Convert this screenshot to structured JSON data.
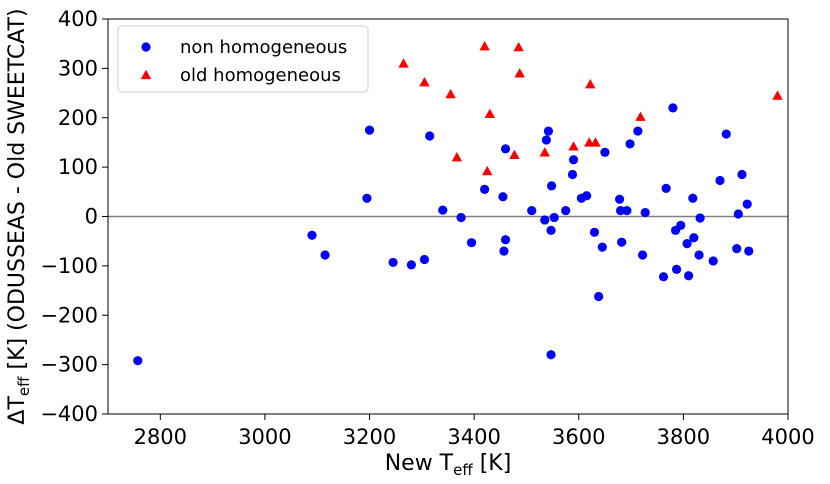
{
  "chart_data": {
    "type": "scatter",
    "xlabel": {
      "main": "New T",
      "sub": "eff",
      "tail": " [K]"
    },
    "ylabel": {
      "main": "ΔT",
      "sub": "eff",
      "tail": " [K] (ODUSSEAS - Old SWEETCAT)"
    },
    "xlim": [
      2700,
      4000
    ],
    "ylim": [
      -400,
      400
    ],
    "xticks": [
      2800,
      3000,
      3200,
      3400,
      3600,
      3800,
      4000
    ],
    "yticks": [
      -400,
      -300,
      -200,
      -100,
      0,
      100,
      200,
      300,
      400
    ],
    "hline": 0,
    "grid": false,
    "legend_position": "top-left",
    "series": [
      {
        "name": "non homogeneous",
        "marker": "circle",
        "color": "#0000ff",
        "points": [
          [
            2757,
            -292
          ],
          [
            3090,
            -38
          ],
          [
            3115,
            -78
          ],
          [
            3195,
            37
          ],
          [
            3200,
            175
          ],
          [
            3245,
            -93
          ],
          [
            3280,
            -98
          ],
          [
            3305,
            -87
          ],
          [
            3315,
            163
          ],
          [
            3340,
            13
          ],
          [
            3375,
            -2
          ],
          [
            3395,
            -53
          ],
          [
            3420,
            55
          ],
          [
            3455,
            40
          ],
          [
            3457,
            -70
          ],
          [
            3460,
            -47
          ],
          [
            3460,
            137
          ],
          [
            3510,
            12
          ],
          [
            3535,
            -7
          ],
          [
            3538,
            155
          ],
          [
            3542,
            173
          ],
          [
            3548,
            62
          ],
          [
            3547,
            -28
          ],
          [
            3547,
            -280
          ],
          [
            3553,
            -2
          ],
          [
            3575,
            12
          ],
          [
            3588,
            85
          ],
          [
            3590,
            115
          ],
          [
            3605,
            37
          ],
          [
            3615,
            42
          ],
          [
            3630,
            -32
          ],
          [
            3638,
            -162
          ],
          [
            3645,
            -62
          ],
          [
            3650,
            130
          ],
          [
            3678,
            35
          ],
          [
            3680,
            12
          ],
          [
            3682,
            -52
          ],
          [
            3692,
            12
          ],
          [
            3698,
            147
          ],
          [
            3713,
            173
          ],
          [
            3722,
            -78
          ],
          [
            3727,
            8
          ],
          [
            3762,
            -122
          ],
          [
            3767,
            57
          ],
          [
            3780,
            220
          ],
          [
            3785,
            -28
          ],
          [
            3787,
            -107
          ],
          [
            3795,
            -18
          ],
          [
            3807,
            -55
          ],
          [
            3810,
            -120
          ],
          [
            3818,
            37
          ],
          [
            3820,
            -43
          ],
          [
            3830,
            -78
          ],
          [
            3832,
            -3
          ],
          [
            3857,
            -90
          ],
          [
            3870,
            73
          ],
          [
            3882,
            167
          ],
          [
            3902,
            -65
          ],
          [
            3905,
            5
          ],
          [
            3912,
            85
          ],
          [
            3922,
            25
          ],
          [
            3925,
            -70
          ]
        ]
      },
      {
        "name": "old homogeneous",
        "marker": "triangle",
        "color": "#ff0000",
        "points": [
          [
            3265,
            310
          ],
          [
            3305,
            272
          ],
          [
            3355,
            248
          ],
          [
            3367,
            120
          ],
          [
            3420,
            345
          ],
          [
            3425,
            92
          ],
          [
            3430,
            208
          ],
          [
            3477,
            125
          ],
          [
            3485,
            343
          ],
          [
            3487,
            290
          ],
          [
            3535,
            130
          ],
          [
            3590,
            142
          ],
          [
            3620,
            150
          ],
          [
            3622,
            268
          ],
          [
            3632,
            150
          ],
          [
            3718,
            202
          ],
          [
            3980,
            245
          ]
        ]
      }
    ]
  }
}
